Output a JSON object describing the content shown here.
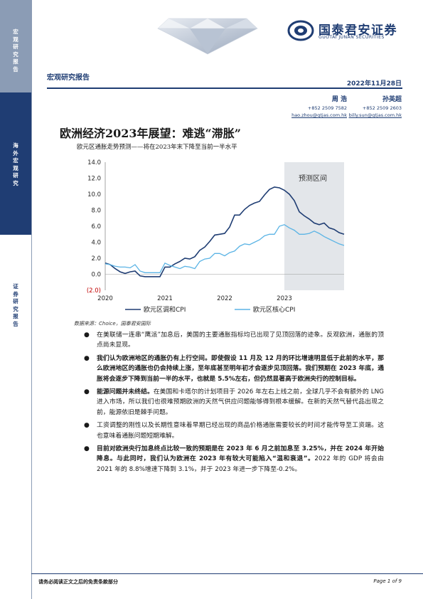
{
  "sidebar": {
    "section1": "宏观研究报告",
    "section2": "海外宏观研究",
    "section3": "证券研究报告"
  },
  "header": {
    "logo_cn": "国泰君安证券",
    "logo_en": "GUOTAI JUNAN SECURITIES",
    "report_type": "宏观研究报告",
    "date": "2022年11月28日"
  },
  "authors": [
    {
      "name": "周 浩",
      "phone": "+852 2509 7582",
      "email": "hao.zhou@gtjas.com.hk"
    },
    {
      "name": "孙英超",
      "phone": "+852 2509 2603",
      "email": "billy.sun@gtjas.com.hk"
    }
  ],
  "title": "欧洲经济2023年展望：难逃“滞胀”",
  "chart_title": "欧元区通胀走势预测——将在2023年末下降至当前一半水平",
  "chart_data": {
    "type": "line",
    "x_labels": [
      "2020",
      "2021",
      "2022",
      "2023"
    ],
    "y_ticks": [
      "14.0",
      "12.0",
      "10.0",
      "8.0",
      "6.0",
      "4.0",
      "2.0",
      "0.0",
      "(2.0)"
    ],
    "ylim": [
      -2,
      14
    ],
    "forecast_label": "预测区间",
    "series": [
      {
        "name": "欧元区调和CPI",
        "color": "#1f3d73",
        "values": [
          1.4,
          1.2,
          0.7,
          0.3,
          0.1,
          0.3,
          0.4,
          -0.2,
          -0.3,
          -0.3,
          -0.3,
          -0.3,
          0.9,
          0.9,
          1.3,
          1.6,
          2.0,
          1.9,
          2.2,
          3.0,
          3.4,
          4.1,
          4.9,
          5.0,
          5.1,
          5.9,
          7.4,
          7.4,
          8.1,
          8.6,
          8.9,
          9.1,
          9.9,
          10.6,
          10.9,
          10.8,
          10.5,
          10.0,
          9.2,
          7.8,
          7.3,
          6.9,
          6.4,
          6.2,
          6.4,
          5.8,
          5.6,
          5.2,
          5.0
        ]
      },
      {
        "name": "欧元区核心CPI",
        "color": "#5bb4e5",
        "values": [
          1.3,
          1.2,
          1.0,
          0.9,
          0.9,
          0.8,
          1.2,
          0.4,
          0.2,
          0.2,
          0.2,
          0.2,
          1.4,
          1.1,
          0.9,
          0.7,
          1.0,
          0.9,
          0.7,
          1.6,
          1.9,
          2.0,
          2.6,
          2.6,
          2.3,
          2.7,
          2.9,
          3.5,
          3.8,
          3.7,
          4.0,
          4.3,
          4.8,
          5.0,
          5.0,
          6.0,
          6.2,
          5.8,
          5.5,
          5.0,
          5.0,
          5.1,
          5.4,
          5.1,
          4.7,
          4.4,
          4.1,
          3.8,
          3.6
        ]
      }
    ],
    "forecast_start_index": 36
  },
  "source": "数据来源：Choice，国泰君安国际",
  "paragraphs": [
    {
      "bold": "",
      "text": "在美联储一连串“鹰派”加息后，美国的主要通胀指标均已出现了见顶回落的迹象。反观欧洲，通胀的顶点尚未显现。"
    },
    {
      "bold": "我们认为欧洲地区的通胀仍有上行空间。即使假设 11 月及 12 月的环比增速明显低于此前的水平，那么欧洲地区的通胀也仍会持续上涨，至年底甚至明年初才会逐步见顶回落。我们预期在 2023 年底，通胀将会逐步下降到当前一半的水平，也就是 5.5%左右，但仍然显著高于欧洲央行的控制目标。",
      "text": ""
    },
    {
      "bold": "能源问题并未终结。",
      "text": "在美国和卡塔尔的计划项目于 2026 年左右上线之前，全球几乎不会有额外的 LNG 进入市场，所以我们也很难预期欧洲的天然气供应问题能够得到根本缓解。在新的天然气替代品出现之前，能源依旧是棘手问题。"
    },
    {
      "bold": "",
      "text": "工资调整的刚性以及长期性意味着早期已经出现的商品价格通胀需要较长的时间才能传导至工资端。这也意味着通胀问题短期难解。"
    },
    {
      "bold": "目前对欧洲央行加息终点比较一致的预期是在 2023 年 6 月之前加息至 3.25%，并在 2024 年开始降息。与此同时，我们认为欧洲在 2023 年有较大可能陷入“温和衰退”。",
      "text": "2022 年的 GDP 将会由 2021 年的 8.8%增速下降到 3.1%，并于 2023 年进一步下降至-0.2%。"
    }
  ],
  "footer": {
    "disclaimer": "请务必阅读正文之后的免责条款部分",
    "page": "Page 1 of 9"
  }
}
